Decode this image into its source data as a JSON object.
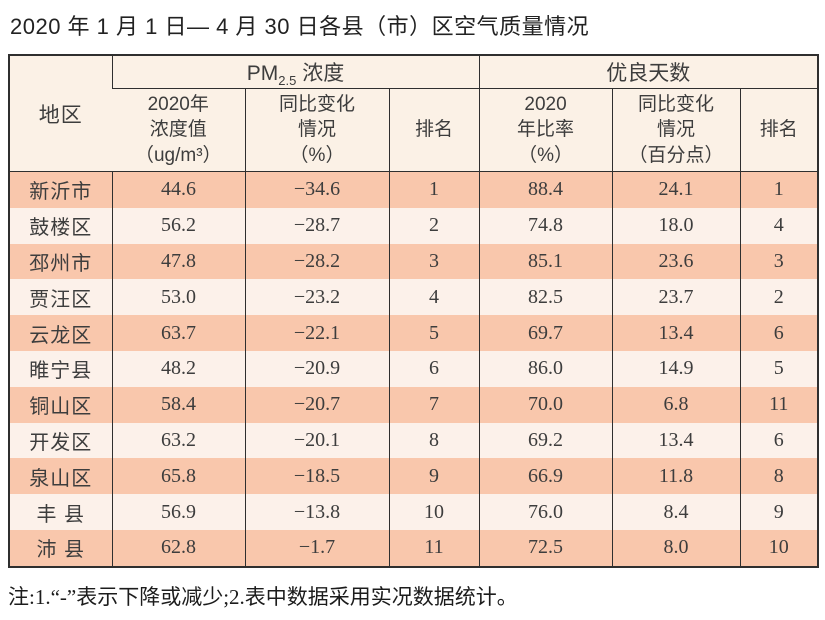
{
  "title": "2020 年 1 月 1 日— 4 月 30 日各县（市）区空气质量情况",
  "table": {
    "region_header": "地区",
    "pm_group": {
      "main": "PM",
      "sub": "2.5",
      "rest": " 浓度"
    },
    "good_group": "优良天数",
    "columns": [
      "2020年\n浓度值\n（ug/m³）",
      "同比变化\n情况\n（%）",
      "排名",
      "2020\n年比率\n（%）",
      "同比变化\n情况\n（百分点）",
      "排名"
    ],
    "rows": [
      [
        "新沂市",
        "44.6",
        "−34.6",
        "1",
        "88.4",
        "24.1",
        "1"
      ],
      [
        "鼓楼区",
        "56.2",
        "−28.7",
        "2",
        "74.8",
        "18.0",
        "4"
      ],
      [
        "邳州市",
        "47.8",
        "−28.2",
        "3",
        "85.1",
        "23.6",
        "3"
      ],
      [
        "贾汪区",
        "53.0",
        "−23.2",
        "4",
        "82.5",
        "23.7",
        "2"
      ],
      [
        "云龙区",
        "63.7",
        "−22.1",
        "5",
        "69.7",
        "13.4",
        "6"
      ],
      [
        "睢宁县",
        "48.2",
        "−20.9",
        "6",
        "86.0",
        "14.9",
        "5"
      ],
      [
        "铜山区",
        "58.4",
        "−20.7",
        "7",
        "70.0",
        "6.8",
        "11"
      ],
      [
        "开发区",
        "63.2",
        "−20.1",
        "8",
        "69.2",
        "13.4",
        "6"
      ],
      [
        "泉山区",
        "65.8",
        "−18.5",
        "9",
        "66.9",
        "11.8",
        "8"
      ],
      [
        "丰 县",
        "56.9",
        "−13.8",
        "10",
        "76.0",
        "8.4",
        "9"
      ],
      [
        "沛 县",
        "62.8",
        "−1.7",
        "11",
        "72.5",
        "8.0",
        "10"
      ]
    ]
  },
  "note": "注:1.“-”表示下降或减少;2.表中数据采用实况数据统计。",
  "colors": {
    "stripe_odd": "#f9c7ac",
    "stripe_even": "#fcf1ea",
    "header_bg": "#fbf1e6",
    "border": "#2f2f2f"
  }
}
